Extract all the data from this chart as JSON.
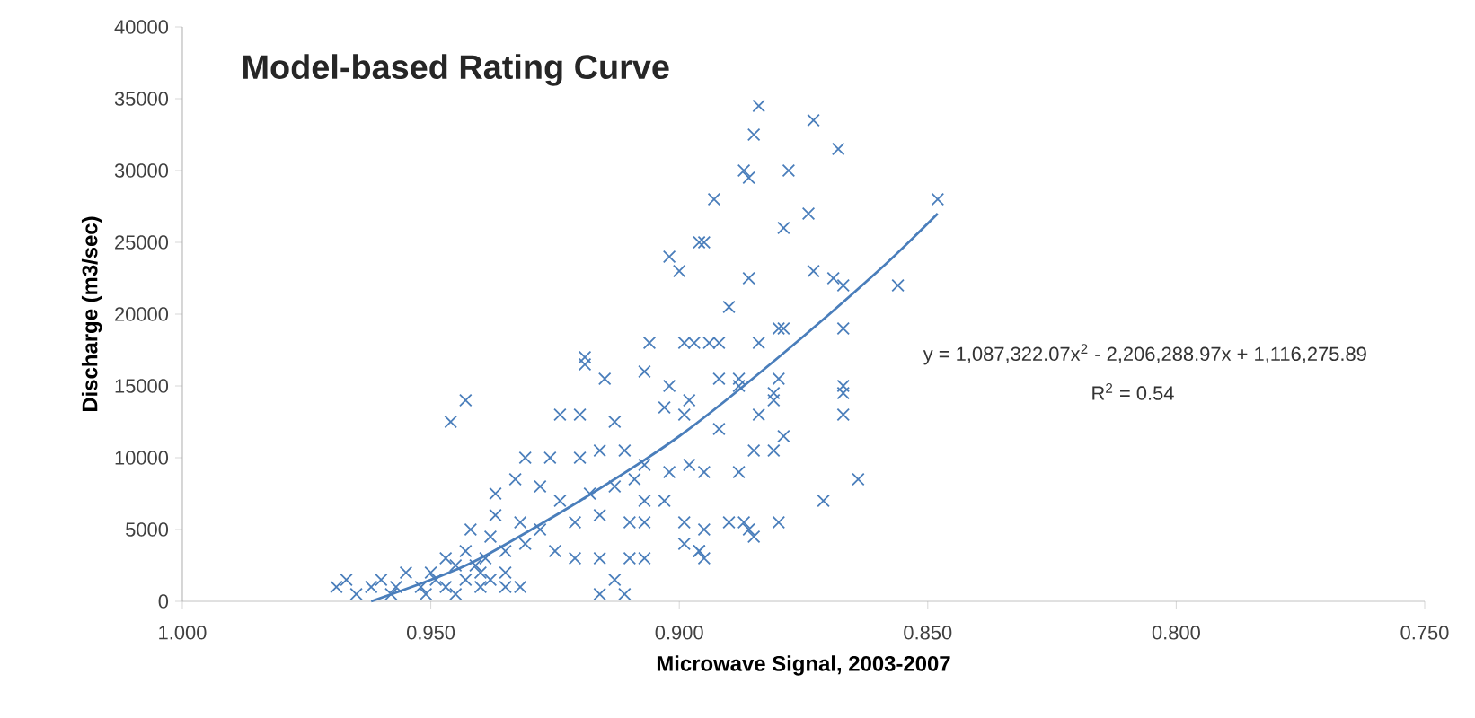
{
  "chart_data": {
    "type": "scatter",
    "title": "Model-based Rating Curve",
    "xlabel": "Microwave Signal, 2003-2007",
    "ylabel": "Discharge (m3/sec)",
    "annotations": [
      "y = 1,087,322.07x$^{2}$ - 2,206,288.97x + 1,116,275.89",
      "R$^{2}$ = 0.54"
    ],
    "xlim": [
      1.0,
      0.75
    ],
    "xticks": [
      {
        "value": 1.0,
        "label": "1.000"
      },
      {
        "value": 0.95,
        "label": "0.950"
      },
      {
        "value": 0.9,
        "label": "0.900"
      },
      {
        "value": 0.85,
        "label": "0.850"
      },
      {
        "value": 0.8,
        "label": "0.800"
      },
      {
        "value": 0.75,
        "label": "0.750"
      }
    ],
    "ylim": [
      0,
      40000
    ],
    "yticks": [
      0,
      5000,
      10000,
      15000,
      20000,
      25000,
      30000,
      35000,
      40000
    ],
    "series": [
      {
        "color": "#4a7ebb",
        "marker": "cross",
        "x": [
          0.884,
          0.873,
          0.885,
          0.868,
          0.887,
          0.878,
          0.886,
          0.893,
          0.848,
          0.879,
          0.874,
          0.895,
          0.886,
          0.902,
          0.9,
          0.896,
          0.873,
          0.869,
          0.867,
          0.856,
          0.89,
          0.88,
          0.867,
          0.897,
          0.894,
          0.884,
          0.888,
          0.88,
          0.867,
          0.867,
          0.881,
          0.906,
          0.879,
          0.919,
          0.943,
          0.946,
          0.919,
          0.899,
          0.892,
          0.915,
          0.907,
          0.902,
          0.898,
          0.892,
          0.888,
          0.881,
          0.924,
          0.92,
          0.913,
          0.903,
          0.899,
          0.892,
          0.884,
          0.879,
          0.931,
          0.926,
          0.92,
          0.916,
          0.911,
          0.907,
          0.902,
          0.898,
          0.895,
          0.885,
          0.881,
          0.888,
          0.871,
          0.937,
          0.933,
          0.928,
          0.924,
          0.918,
          0.913,
          0.909,
          0.907,
          0.903,
          0.937,
          0.932,
          0.928,
          0.921,
          0.916,
          0.91,
          0.907,
          0.899,
          0.895,
          0.89,
          0.886,
          0.88,
          0.942,
          0.938,
          0.943,
          0.939,
          0.935,
          0.931,
          0.925,
          0.921,
          0.916,
          0.91,
          0.907,
          0.899,
          0.896,
          0.895,
          0.947,
          0.945,
          0.94,
          0.935,
          0.932,
          0.916,
          0.911,
          0.913,
          0.969,
          0.965,
          0.962,
          0.96,
          0.957,
          0.952,
          0.949,
          0.947,
          0.945,
          0.943,
          0.94,
          0.938,
          0.935,
          0.958,
          0.951,
          0.864,
          0.887,
          0.885,
          0.896,
          0.867,
          0.967,
          0.955,
          0.95,
          0.941
        ],
        "values": [
          34500,
          33500,
          32500,
          31500,
          30000,
          30000,
          29500,
          28000,
          28000,
          26000,
          27000,
          25000,
          22500,
          24000,
          23000,
          25000,
          23000,
          22500,
          22000,
          22000,
          20500,
          19000,
          19000,
          18000,
          18000,
          18000,
          15500,
          15500,
          15000,
          13000,
          14500,
          18000,
          19000,
          17000,
          14000,
          12500,
          16500,
          18000,
          18000,
          15500,
          16000,
          15000,
          14000,
          15500,
          15000,
          14000,
          13000,
          13000,
          12500,
          13500,
          13000,
          12000,
          13000,
          11500,
          10000,
          10000,
          10000,
          10500,
          10500,
          9500,
          9000,
          9500,
          9000,
          10500,
          10500,
          9000,
          7000,
          7500,
          8500,
          8000,
          7000,
          7500,
          8000,
          8500,
          7000,
          7000,
          6000,
          5500,
          5000,
          5500,
          6000,
          5500,
          5500,
          5500,
          5000,
          5500,
          5000,
          5500,
          5000,
          4500,
          3500,
          3000,
          3500,
          4000,
          3500,
          3000,
          3000,
          3000,
          3000,
          4000,
          3500,
          3000,
          3000,
          2500,
          2000,
          2000,
          1000,
          500,
          500,
          1500,
          1000,
          500,
          1000,
          1500,
          1000,
          1000,
          1500,
          1000,
          500,
          1500,
          1000,
          1500,
          1000,
          500,
          500,
          8500,
          5500,
          4500,
          3500,
          14500,
          1500,
          2000,
          2000,
          2500
        ]
      },
      {
        "type": "line",
        "color": "#4a7ebb",
        "marker": "none",
        "x": [
          0.962,
          0.95,
          0.94,
          0.92,
          0.9,
          0.88,
          0.86,
          0.848
        ],
        "values": [
          0,
          1500,
          3000,
          7000,
          11500,
          17000,
          23000,
          27000
        ]
      }
    ]
  }
}
